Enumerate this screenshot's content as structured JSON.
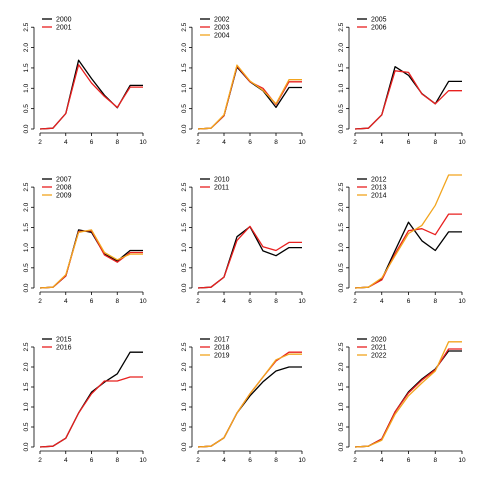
{
  "colors": {
    "axis": "#000000",
    "series": [
      "#000000",
      "#e8201f",
      "#f2a51e"
    ]
  },
  "chart_data": [
    {
      "type": "line",
      "x": [
        2,
        3,
        4,
        5,
        6,
        7,
        8,
        9,
        10
      ],
      "xlim": [
        2,
        10
      ],
      "ylim": [
        0,
        2.8
      ],
      "xticks": [
        "2",
        "4",
        "6",
        "8",
        "10"
      ],
      "yticks": [
        "0.0",
        "0.5",
        "1.0",
        "1.5",
        "2.0",
        "2.5"
      ],
      "legend_position": "top-left",
      "grid": false,
      "series": [
        {
          "name": "2000",
          "values": [
            0,
            0.02,
            0.38,
            1.69,
            1.24,
            0.83,
            0.52,
            1.07,
            1.07
          ]
        },
        {
          "name": "2001",
          "values": [
            0,
            0.02,
            0.38,
            1.58,
            1.13,
            0.8,
            0.53,
            1.03,
            1.03
          ]
        }
      ]
    },
    {
      "type": "line",
      "x": [
        2,
        3,
        4,
        5,
        6,
        7,
        8,
        9,
        10
      ],
      "xlim": [
        2,
        10
      ],
      "ylim": [
        0,
        2.8
      ],
      "xticks": [
        "2",
        "4",
        "6",
        "8",
        "10"
      ],
      "yticks": [
        "0.0",
        "0.5",
        "1.0",
        "1.5",
        "2.0",
        "2.5"
      ],
      "legend_position": "top-left",
      "grid": false,
      "series": [
        {
          "name": "2002",
          "values": [
            0,
            0.02,
            0.33,
            1.52,
            1.16,
            0.94,
            0.53,
            1.02,
            1.02
          ]
        },
        {
          "name": "2003",
          "values": [
            0,
            0.02,
            0.33,
            1.55,
            1.16,
            1.0,
            0.6,
            1.16,
            1.16
          ]
        },
        {
          "name": "2004",
          "values": [
            0,
            0.02,
            0.35,
            1.57,
            1.18,
            0.95,
            0.62,
            1.21,
            1.21
          ]
        }
      ]
    },
    {
      "type": "line",
      "x": [
        2,
        3,
        4,
        5,
        6,
        7,
        8,
        9,
        10
      ],
      "xlim": [
        2,
        10
      ],
      "ylim": [
        0,
        2.8
      ],
      "xticks": [
        "2",
        "4",
        "6",
        "8",
        "10"
      ],
      "yticks": [
        "0.0",
        "0.5",
        "1.0",
        "1.5",
        "2.0",
        "2.5"
      ],
      "legend_position": "top-left",
      "grid": false,
      "series": [
        {
          "name": "2005",
          "values": [
            0,
            0.02,
            0.35,
            1.53,
            1.32,
            0.87,
            0.62,
            1.17,
            1.17
          ]
        },
        {
          "name": "2006",
          "values": [
            0,
            0.02,
            0.35,
            1.43,
            1.39,
            0.86,
            0.62,
            0.94,
            0.94
          ]
        }
      ]
    },
    {
      "type": "line",
      "x": [
        2,
        3,
        4,
        5,
        6,
        7,
        8,
        9,
        10
      ],
      "xlim": [
        2,
        10
      ],
      "ylim": [
        0,
        2.8
      ],
      "xticks": [
        "2",
        "4",
        "6",
        "8",
        "10"
      ],
      "yticks": [
        "0.0",
        "0.5",
        "1.0",
        "1.5",
        "2.0",
        "2.5"
      ],
      "legend_position": "top-left",
      "grid": false,
      "series": [
        {
          "name": "2007",
          "values": [
            0,
            0.02,
            0.3,
            1.44,
            1.38,
            0.84,
            0.67,
            0.93,
            0.93
          ]
        },
        {
          "name": "2008",
          "values": [
            0,
            0.02,
            0.3,
            1.4,
            1.42,
            0.82,
            0.64,
            0.88,
            0.88
          ]
        },
        {
          "name": "2009",
          "values": [
            0,
            0.02,
            0.33,
            1.38,
            1.44,
            0.88,
            0.7,
            0.84,
            0.84
          ]
        }
      ]
    },
    {
      "type": "line",
      "x": [
        2,
        3,
        4,
        5,
        6,
        7,
        8,
        9,
        10
      ],
      "xlim": [
        2,
        10
      ],
      "ylim": [
        0,
        2.8
      ],
      "xticks": [
        "2",
        "4",
        "6",
        "8",
        "10"
      ],
      "yticks": [
        "0.0",
        "0.5",
        "1.0",
        "1.5",
        "2.0",
        "2.5"
      ],
      "legend_position": "top-left",
      "grid": false,
      "series": [
        {
          "name": "2010",
          "values": [
            0,
            0.02,
            0.27,
            1.27,
            1.52,
            0.92,
            0.8,
            1.0,
            1.0
          ]
        },
        {
          "name": "2011",
          "values": [
            0,
            0.02,
            0.27,
            1.18,
            1.53,
            1.02,
            0.93,
            1.13,
            1.13
          ]
        }
      ]
    },
    {
      "type": "line",
      "x": [
        2,
        3,
        4,
        5,
        6,
        7,
        8,
        9,
        10
      ],
      "xlim": [
        2,
        10
      ],
      "ylim": [
        0,
        2.8
      ],
      "xticks": [
        "2",
        "4",
        "6",
        "8",
        "10"
      ],
      "yticks": [
        "0.0",
        "0.5",
        "1.0",
        "1.5",
        "2.0",
        "2.5"
      ],
      "legend_position": "top-left",
      "grid": false,
      "series": [
        {
          "name": "2012",
          "values": [
            0,
            0.02,
            0.22,
            0.93,
            1.63,
            1.17,
            0.93,
            1.39,
            1.39
          ]
        },
        {
          "name": "2013",
          "values": [
            0,
            0.02,
            0.2,
            0.85,
            1.42,
            1.47,
            1.32,
            1.83,
            1.83
          ]
        },
        {
          "name": "2014",
          "values": [
            0,
            0.02,
            0.25,
            0.8,
            1.35,
            1.55,
            2.05,
            2.8,
            2.8
          ]
        }
      ]
    },
    {
      "type": "line",
      "x": [
        2,
        3,
        4,
        5,
        6,
        7,
        8,
        9,
        10
      ],
      "xlim": [
        2,
        10
      ],
      "ylim": [
        0,
        2.8
      ],
      "xticks": [
        "2",
        "4",
        "6",
        "8",
        "10"
      ],
      "yticks": [
        "0.0",
        "0.5",
        "1.0",
        "1.5",
        "2.0",
        "2.5"
      ],
      "legend_position": "top-left",
      "grid": false,
      "series": [
        {
          "name": "2015",
          "values": [
            0,
            0.02,
            0.22,
            0.85,
            1.37,
            1.62,
            1.83,
            2.37,
            2.37
          ]
        },
        {
          "name": "2016",
          "values": [
            0,
            0.02,
            0.22,
            0.85,
            1.33,
            1.65,
            1.65,
            1.75,
            1.75
          ]
        }
      ]
    },
    {
      "type": "line",
      "x": [
        2,
        3,
        4,
        5,
        6,
        7,
        8,
        9,
        10
      ],
      "xlim": [
        2,
        10
      ],
      "ylim": [
        0,
        2.8
      ],
      "xticks": [
        "2",
        "4",
        "6",
        "8",
        "10"
      ],
      "yticks": [
        "0.0",
        "0.5",
        "1.0",
        "1.5",
        "2.0",
        "2.5"
      ],
      "legend_position": "top-left",
      "grid": false,
      "series": [
        {
          "name": "2017",
          "values": [
            0,
            0.02,
            0.23,
            0.85,
            1.28,
            1.63,
            1.9,
            2.0,
            2.0
          ]
        },
        {
          "name": "2018",
          "values": [
            0,
            0.02,
            0.23,
            0.85,
            1.33,
            1.75,
            2.15,
            2.37,
            2.37
          ]
        },
        {
          "name": "2019",
          "values": [
            0,
            0.02,
            0.23,
            0.85,
            1.33,
            1.75,
            2.18,
            2.32,
            2.32
          ]
        }
      ]
    },
    {
      "type": "line",
      "x": [
        2,
        3,
        4,
        5,
        6,
        7,
        8,
        9,
        10
      ],
      "xlim": [
        2,
        10
      ],
      "ylim": [
        0,
        2.8
      ],
      "xticks": [
        "2",
        "4",
        "6",
        "8",
        "10"
      ],
      "yticks": [
        "0.0",
        "0.5",
        "1.0",
        "1.5",
        "2.0",
        "2.5"
      ],
      "legend_position": "top-left",
      "grid": false,
      "series": [
        {
          "name": "2020",
          "values": [
            0,
            0.02,
            0.2,
            0.88,
            1.38,
            1.7,
            1.95,
            2.4,
            2.4
          ]
        },
        {
          "name": "2021",
          "values": [
            0,
            0.02,
            0.2,
            0.88,
            1.35,
            1.67,
            1.93,
            2.45,
            2.45
          ]
        },
        {
          "name": "2022",
          "values": [
            0,
            0.02,
            0.17,
            0.82,
            1.28,
            1.6,
            1.9,
            2.63,
            2.63
          ]
        }
      ]
    }
  ]
}
